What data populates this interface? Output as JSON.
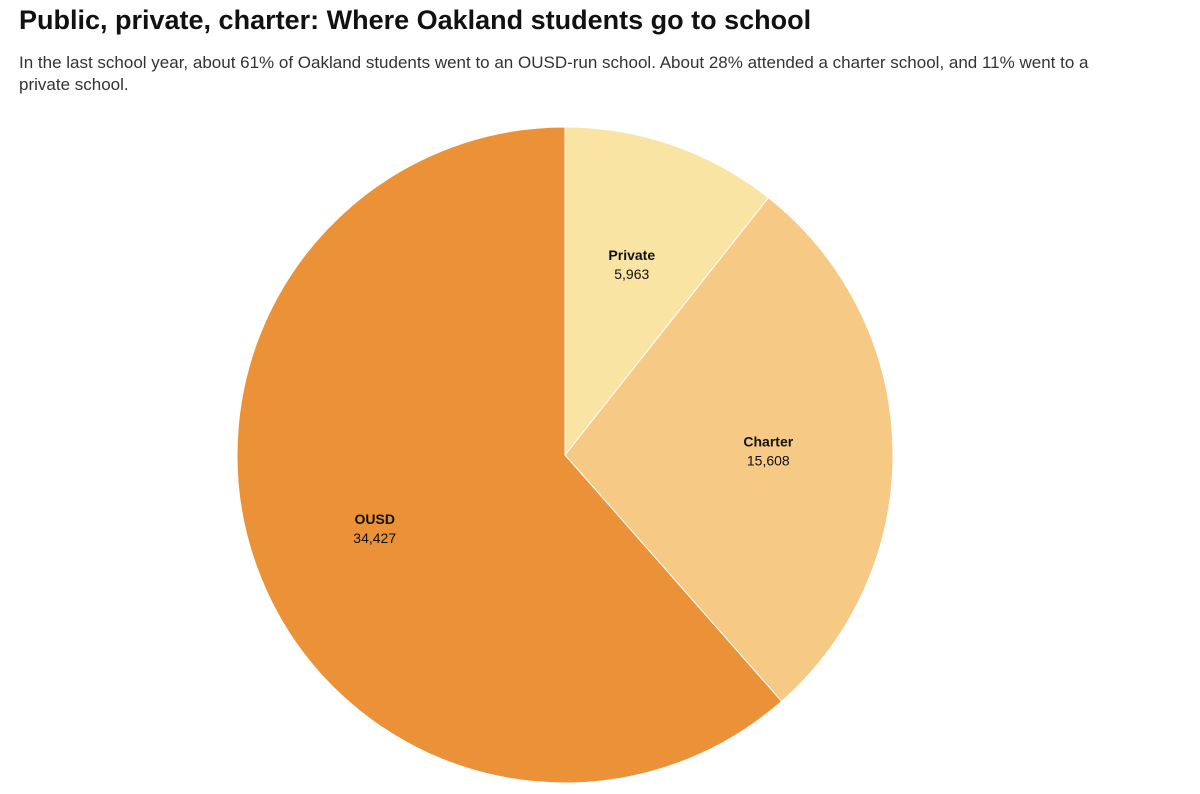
{
  "chart_data": {
    "type": "pie",
    "title": "Public, private, charter: Where Oakland students go to school",
    "subtitle": "In the last school year, about 61% of Oakland students went to an OUSD-run school. About 28% attended a charter school, and 11% went to a private school.",
    "start_angle_deg": 0,
    "direction": "clockwise",
    "slices": [
      {
        "label": "Private",
        "value": 5963,
        "display_value": "5,963",
        "color": "#f9e4a4"
      },
      {
        "label": "Charter",
        "value": 15608,
        "display_value": "15,608",
        "color": "#f6ca85"
      },
      {
        "label": "OUSD",
        "value": 34427,
        "display_value": "34,427",
        "color": "#eb9238"
      }
    ]
  }
}
